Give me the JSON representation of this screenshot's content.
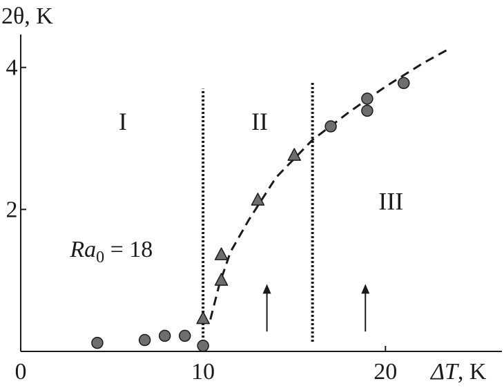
{
  "chart_data": {
    "type": "scatter",
    "ylabel": "2θ, K",
    "xlabel_symbol": "ΔT",
    "xlabel_unit": ", K",
    "xlim": [
      0,
      26.5
    ],
    "ylim": [
      0,
      4.95
    ],
    "x_ticks": [
      {
        "value": 0,
        "label": "0"
      },
      {
        "value": 10,
        "label": "10"
      },
      {
        "value": 20,
        "label": "20"
      }
    ],
    "y_ticks": [
      {
        "value": 2,
        "label": "2"
      },
      {
        "value": 4,
        "label": "4"
      }
    ],
    "series": [
      {
        "marker": "circle",
        "color": "#6e6e6e",
        "points": [
          {
            "x": 4.2,
            "y": 0.12
          },
          {
            "x": 6.8,
            "y": 0.16
          },
          {
            "x": 7.9,
            "y": 0.22
          },
          {
            "x": 9.0,
            "y": 0.22
          },
          {
            "x": 10.0,
            "y": 0.08
          },
          {
            "x": 17.0,
            "y": 3.17
          },
          {
            "x": 19.0,
            "y": 3.56
          },
          {
            "x": 19.0,
            "y": 3.39
          },
          {
            "x": 21.0,
            "y": 3.78
          }
        ]
      },
      {
        "marker": "triangle",
        "color": "#6e6e6e",
        "points": [
          {
            "x": 10.0,
            "y": 0.47
          },
          {
            "x": 11.0,
            "y": 1.01
          },
          {
            "x": 11.0,
            "y": 1.37
          },
          {
            "x": 13.0,
            "y": 2.14
          },
          {
            "x": 15.0,
            "y": 2.77
          }
        ]
      }
    ],
    "fit_curve": {
      "style": "dashed",
      "points": [
        {
          "x": 10.4,
          "y": 0.45
        },
        {
          "x": 10.9,
          "y": 0.95
        },
        {
          "x": 11.5,
          "y": 1.4
        },
        {
          "x": 12.5,
          "y": 1.85
        },
        {
          "x": 14.0,
          "y": 2.45
        },
        {
          "x": 16.0,
          "y": 2.98
        },
        {
          "x": 18.0,
          "y": 3.37
        },
        {
          "x": 20.0,
          "y": 3.73
        },
        {
          "x": 22.0,
          "y": 4.05
        },
        {
          "x": 23.4,
          "y": 4.25
        }
      ]
    },
    "boundaries": [
      {
        "x": 10.0,
        "y_top": 3.7,
        "style": "dotted"
      },
      {
        "x": 16.0,
        "y_top": 3.8,
        "style": "dotted"
      }
    ],
    "arrows": [
      {
        "x": 13.5,
        "y_from": 0.28,
        "y_to": 0.95
      },
      {
        "x": 18.9,
        "y_from": 0.28,
        "y_to": 0.95
      }
    ],
    "annotations": [
      {
        "id": "region-1",
        "text": "I",
        "x": 5.6,
        "y": 3.12
      },
      {
        "id": "region-2",
        "text": "II",
        "x": 13.1,
        "y": 3.12
      },
      {
        "id": "region-3",
        "text": "III",
        "x": 20.3,
        "y": 2.0
      },
      {
        "id": "rayleigh",
        "var": "Ra",
        "sub": "0",
        "rest": " = 18",
        "x": 2.7,
        "y": 1.33
      }
    ]
  }
}
